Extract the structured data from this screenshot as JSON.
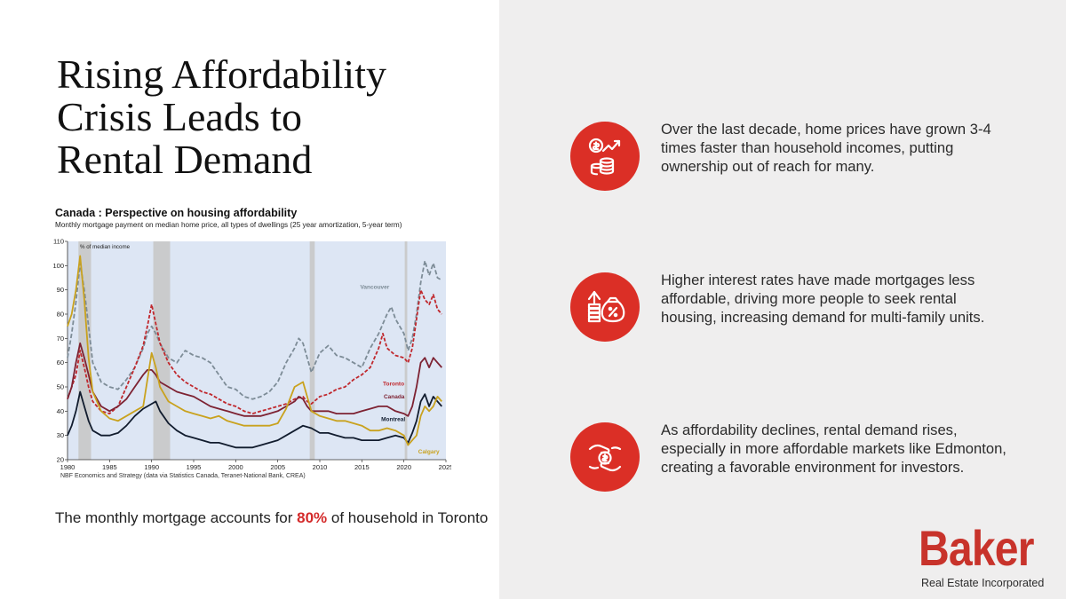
{
  "slide": {
    "title_lines": [
      "Rising Affordability",
      "Crisis Leads to",
      "Rental Demand"
    ],
    "caption": {
      "before": "The monthly mortgage accounts for ",
      "highlight": "80%",
      "after": " of household in Toronto"
    },
    "points": [
      {
        "icon": "money-growth-icon",
        "text": "Over the last decade, home prices have grown 3-4 times faster than household incomes, putting ownership out of reach for many."
      },
      {
        "icon": "interest-rate-money-bag-icon",
        "text": "Higher interest rates have made mortgages less affordable, driving more people to seek rental housing, increasing demand for multi-family units."
      },
      {
        "icon": "hand-holding-coin-icon",
        "text": "As affordability declines, rental demand rises, especially in more affordable markets like Edmonton, creating a favorable environment for investors."
      }
    ],
    "logo": {
      "name": "Baker",
      "subtitle": "Real Estate Incorporated"
    },
    "colors": {
      "accent_red": "#db2f26",
      "right_panel_bg": "#efeeee",
      "plot_bg": "#dde6f4",
      "recession_band": "#c8c8c8"
    }
  },
  "chart_data": {
    "type": "line",
    "title": "Canada : Perspective on housing affordability",
    "subtitle": "Monthly mortgage payment on median home price, all types of dwellings (25 year amortization, 5-year term)",
    "unit_label": "% of median income",
    "source": "NBF Economics and Strategy (data via Statistics Canada, Teranet-National Bank, CREA)",
    "xlim": [
      1980,
      2025
    ],
    "ylim": [
      20,
      110
    ],
    "x_ticks": [
      1980,
      1985,
      1990,
      1995,
      2000,
      2005,
      2010,
      2015,
      2020,
      2025
    ],
    "y_ticks": [
      20,
      30,
      40,
      50,
      60,
      70,
      80,
      90,
      100,
      110
    ],
    "grid": false,
    "recession_bands": [
      [
        1981.3,
        1982.8
      ],
      [
        1990.2,
        1992.2
      ],
      [
        2008.8,
        2009.4
      ],
      [
        2020.1,
        2020.4
      ]
    ],
    "series": [
      {
        "name": "Vancouver",
        "color": "#7d8c97",
        "dash": "5,2.5",
        "x": [
          1980,
          1980.5,
          1981,
          1981.5,
          1982,
          1982.5,
          1983,
          1984,
          1985,
          1986,
          1987,
          1988,
          1989,
          1989.5,
          1990,
          1990.5,
          1991,
          1992,
          1993,
          1994,
          1995,
          1996,
          1997,
          1998,
          1999,
          2000,
          2001,
          2002,
          2003,
          2004,
          2005,
          2006,
          2007,
          2007.5,
          2008,
          2008.5,
          2009,
          2010,
          2011,
          2012,
          2013,
          2014,
          2015,
          2016,
          2017,
          2018,
          2018.5,
          2019,
          2020,
          2020.5,
          2021,
          2021.5,
          2022,
          2022.5,
          2023,
          2023.5,
          2024,
          2024.5
        ],
        "y": [
          62,
          72,
          85,
          101,
          90,
          75,
          60,
          52,
          50,
          49,
          53,
          58,
          66,
          72,
          75,
          72,
          68,
          62,
          60,
          65,
          63,
          62,
          60,
          55,
          50,
          49,
          46,
          45,
          46,
          48,
          52,
          60,
          66,
          70,
          68,
          62,
          56,
          64,
          67,
          63,
          62,
          60,
          58,
          66,
          72,
          80,
          83,
          78,
          72,
          65,
          70,
          80,
          93,
          102,
          96,
          101,
          95,
          94
        ]
      },
      {
        "name": "Toronto",
        "color": "#c0282d",
        "dash": "4,2",
        "x": [
          1980,
          1981,
          1981.5,
          1982,
          1982.5,
          1983,
          1984,
          1985,
          1986,
          1987,
          1988,
          1989,
          1989.5,
          1990,
          1990.5,
          1991,
          1992,
          1993,
          1994,
          1995,
          1996,
          1997,
          1998,
          1999,
          2000,
          2001,
          2002,
          2003,
          2004,
          2005,
          2006,
          2007,
          2008,
          2008.5,
          2009,
          2010,
          2011,
          2012,
          2013,
          2014,
          2015,
          2016,
          2017,
          2017.5,
          2018,
          2019,
          2020,
          2020.5,
          2021,
          2021.5,
          2022,
          2022.5,
          2023,
          2023.5,
          2024,
          2024.5
        ],
        "y": [
          45,
          55,
          65,
          58,
          50,
          44,
          40,
          39,
          42,
          50,
          58,
          67,
          75,
          84,
          76,
          68,
          60,
          55,
          52,
          50,
          48,
          47,
          45,
          43,
          42,
          40,
          39,
          40,
          41,
          42,
          43,
          45,
          46,
          44,
          43,
          46,
          47,
          49,
          50,
          53,
          55,
          58,
          66,
          72,
          66,
          63,
          62,
          60,
          66,
          78,
          90,
          86,
          84,
          88,
          82,
          80
        ]
      },
      {
        "name": "Canada",
        "color": "#7d2232",
        "dash": "",
        "x": [
          1980,
          1980.5,
          1981,
          1981.5,
          1982,
          1982.5,
          1983,
          1984,
          1985,
          1986,
          1987,
          1988,
          1989,
          1989.5,
          1990,
          1990.5,
          1991,
          1992,
          1993,
          1994,
          1995,
          1996,
          1997,
          1998,
          1999,
          2000,
          2001,
          2002,
          2003,
          2004,
          2005,
          2006,
          2007,
          2007.5,
          2008,
          2008.5,
          2009,
          2010,
          2011,
          2012,
          2013,
          2014,
          2015,
          2016,
          2017,
          2018,
          2019,
          2020,
          2020.5,
          2021,
          2021.5,
          2022,
          2022.5,
          2023,
          2023.5,
          2024,
          2024.5
        ],
        "y": [
          45,
          50,
          60,
          68,
          62,
          55,
          48,
          42,
          40,
          42,
          45,
          50,
          55,
          57,
          57,
          55,
          52,
          50,
          48,
          47,
          46,
          44,
          42,
          41,
          40,
          39,
          38,
          38,
          38,
          39,
          40,
          42,
          44,
          46,
          45,
          42,
          40,
          40,
          40,
          39,
          39,
          39,
          40,
          41,
          42,
          42,
          40,
          39,
          38,
          42,
          50,
          60,
          62,
          58,
          62,
          60,
          58
        ]
      },
      {
        "name": "Montreal",
        "color": "#111c2e",
        "dash": "",
        "x": [
          1980,
          1980.5,
          1981,
          1981.5,
          1982,
          1982.5,
          1983,
          1984,
          1985,
          1986,
          1987,
          1988,
          1989,
          1990,
          1990.5,
          1991,
          1992,
          1993,
          1994,
          1995,
          1996,
          1997,
          1998,
          1999,
          2000,
          2001,
          2002,
          2003,
          2004,
          2005,
          2006,
          2007,
          2008,
          2009,
          2010,
          2011,
          2012,
          2013,
          2014,
          2015,
          2016,
          2017,
          2018,
          2019,
          2020,
          2020.5,
          2021,
          2021.5,
          2022,
          2022.5,
          2023,
          2023.5,
          2024,
          2024.5
        ],
        "y": [
          30,
          34,
          40,
          48,
          42,
          36,
          32,
          30,
          30,
          31,
          34,
          38,
          41,
          43,
          44,
          40,
          35,
          32,
          30,
          29,
          28,
          27,
          27,
          26,
          25,
          25,
          25,
          26,
          27,
          28,
          30,
          32,
          34,
          33,
          31,
          31,
          30,
          29,
          29,
          28,
          28,
          28,
          29,
          30,
          29,
          27,
          31,
          36,
          44,
          47,
          42,
          46,
          44,
          42
        ]
      },
      {
        "name": "Calgary",
        "color": "#c9a21e",
        "dash": "",
        "x": [
          1980,
          1980.5,
          1981,
          1981.5,
          1982,
          1982.5,
          1983,
          1984,
          1985,
          1986,
          1987,
          1988,
          1989,
          1990,
          1990.5,
          1991,
          1992,
          1993,
          1994,
          1995,
          1996,
          1997,
          1998,
          1999,
          2000,
          2001,
          2002,
          2003,
          2004,
          2005,
          2006,
          2007,
          2008,
          2008.5,
          2009,
          2010,
          2011,
          2012,
          2013,
          2014,
          2015,
          2016,
          2017,
          2018,
          2019,
          2020,
          2020.5,
          2021,
          2021.5,
          2022,
          2022.5,
          2023,
          2023.5,
          2024,
          2024.5
        ],
        "y": [
          75,
          80,
          90,
          104,
          86,
          62,
          48,
          40,
          37,
          36,
          38,
          40,
          42,
          64,
          58,
          50,
          44,
          42,
          40,
          39,
          38,
          37,
          38,
          36,
          35,
          34,
          34,
          34,
          34,
          35,
          41,
          50,
          52,
          46,
          40,
          38,
          37,
          36,
          36,
          35,
          34,
          32,
          32,
          33,
          32,
          30,
          26,
          28,
          30,
          38,
          42,
          40,
          42,
          46,
          44
        ]
      }
    ]
  }
}
